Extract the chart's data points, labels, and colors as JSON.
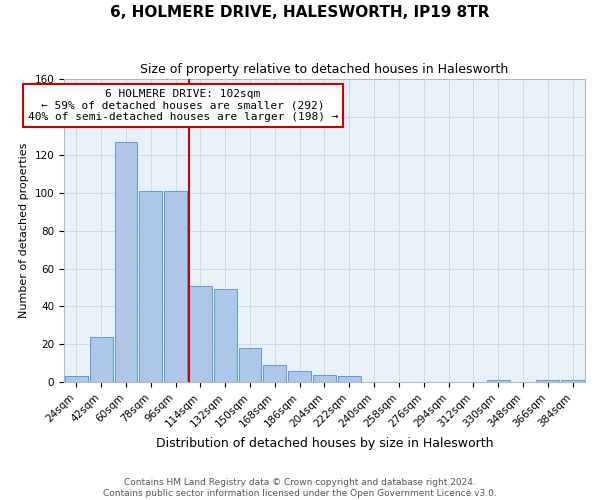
{
  "title": "6, HOLMERE DRIVE, HALESWORTH, IP19 8TR",
  "subtitle": "Size of property relative to detached houses in Halesworth",
  "xlabel": "Distribution of detached houses by size in Halesworth",
  "ylabel": "Number of detached properties",
  "footer_lines": [
    "Contains HM Land Registry data © Crown copyright and database right 2024.",
    "Contains public sector information licensed under the Open Government Licence v3.0."
  ],
  "bin_labels": [
    "24sqm",
    "42sqm",
    "60sqm",
    "78sqm",
    "96sqm",
    "114sqm",
    "132sqm",
    "150sqm",
    "168sqm",
    "186sqm",
    "204sqm",
    "222sqm",
    "240sqm",
    "258sqm",
    "276sqm",
    "294sqm",
    "312sqm",
    "330sqm",
    "348sqm",
    "366sqm",
    "384sqm"
  ],
  "bar_values": [
    3,
    24,
    127,
    101,
    101,
    51,
    49,
    18,
    9,
    6,
    4,
    3,
    0,
    0,
    0,
    0,
    0,
    1,
    0,
    1,
    1
  ],
  "bin_width": 18,
  "bar_color": "#aec6e8",
  "bar_edge_color": "#5b9bd5",
  "vline_x_idx": 5,
  "vline_color": "#cc0000",
  "annotation_box_color": "#cc0000",
  "annotation_lines": [
    "6 HOLMERE DRIVE: 102sqm",
    "← 59% of detached houses are smaller (292)",
    "40% of semi-detached houses are larger (198) →"
  ],
  "ylim": [
    0,
    160
  ],
  "yticks": [
    0,
    20,
    40,
    60,
    80,
    100,
    120,
    140,
    160
  ],
  "grid_color": "#ccd9e8",
  "background_color": "#e8f0f8",
  "title_fontsize": 11,
  "subtitle_fontsize": 9,
  "xlabel_fontsize": 9,
  "ylabel_fontsize": 8,
  "tick_fontsize": 7.5,
  "annotation_fontsize": 8,
  "footer_fontsize": 6.5
}
